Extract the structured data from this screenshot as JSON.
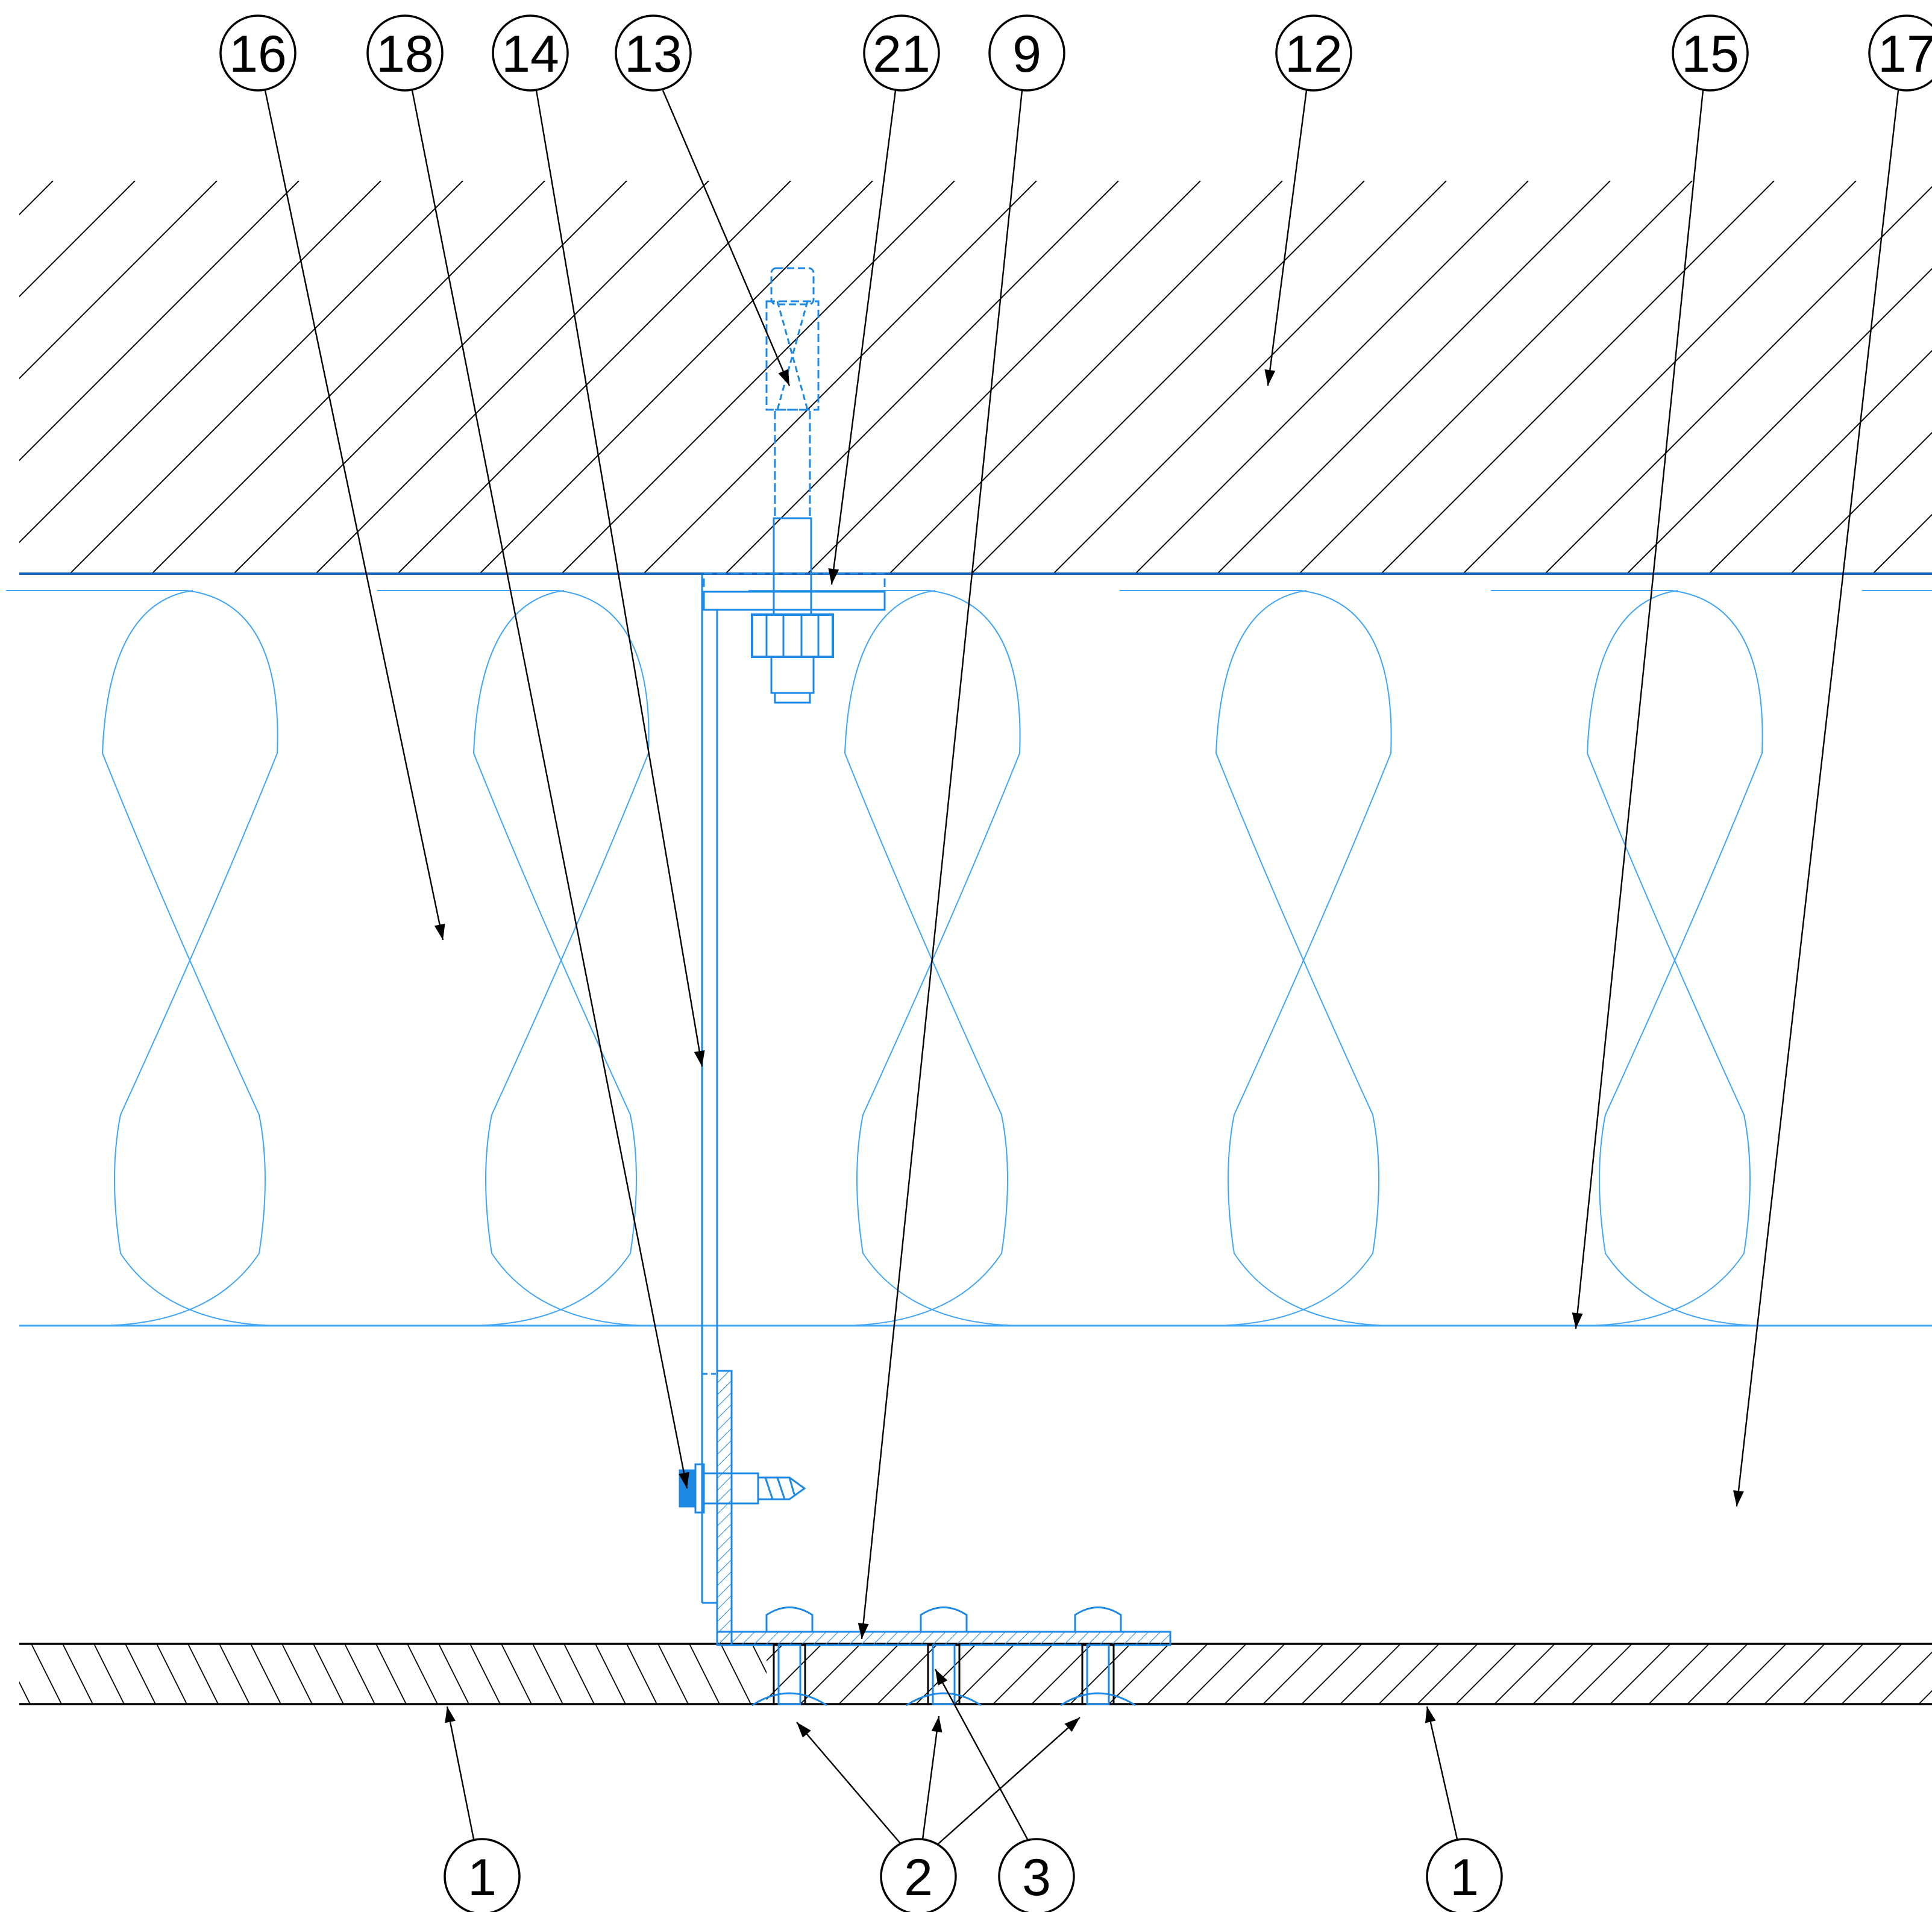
{
  "diagram": {
    "callouts_top": [
      {
        "id": "callout-16",
        "label": "16"
      },
      {
        "id": "callout-18",
        "label": "18"
      },
      {
        "id": "callout-14",
        "label": "14"
      },
      {
        "id": "callout-13",
        "label": "13"
      },
      {
        "id": "callout-21",
        "label": "21"
      },
      {
        "id": "callout-9",
        "label": "9"
      },
      {
        "id": "callout-12",
        "label": "12"
      },
      {
        "id": "callout-15",
        "label": "15"
      },
      {
        "id": "callout-17",
        "label": "17"
      }
    ],
    "callouts_bottom": [
      {
        "id": "callout-1-left",
        "label": "1"
      },
      {
        "id": "callout-2",
        "label": "2"
      },
      {
        "id": "callout-3",
        "label": "3"
      },
      {
        "id": "callout-1-right",
        "label": "1"
      }
    ],
    "colors": {
      "line": "#000000",
      "component_blue": "#1e88e5",
      "insulation_blue": "#42a5f5",
      "background": "#ffffff"
    }
  }
}
